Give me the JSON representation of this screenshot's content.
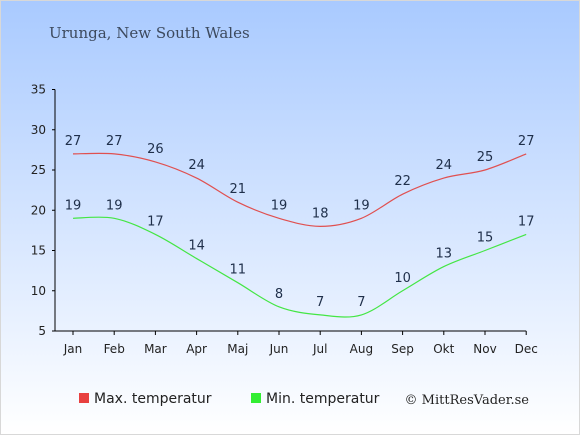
{
  "title": "Urunga, New South Wales",
  "credit": "© MittResVader.se",
  "colors": {
    "sky_top": "#a9caff",
    "sky_bottom": "#ffffff",
    "max_line": "#e05050",
    "min_line": "#44e644",
    "axis": "#000000",
    "label": "#1f2f4a"
  },
  "legend": [
    {
      "label": "Max. temperatur",
      "color": "#e84040"
    },
    {
      "label": "Min. temperatur",
      "color": "#33ee33"
    }
  ],
  "chart_data": {
    "type": "line",
    "title": "Urunga, New South Wales",
    "categories": [
      "Jan",
      "Feb",
      "Mar",
      "Apr",
      "Maj",
      "Jun",
      "Jul",
      "Aug",
      "Sep",
      "Okt",
      "Nov",
      "Dec"
    ],
    "series": [
      {
        "name": "Max. temperatur",
        "values": [
          27,
          27,
          26,
          24,
          21,
          19,
          18,
          19,
          22,
          24,
          25,
          27
        ],
        "color": "#e05050"
      },
      {
        "name": "Min. temperatur",
        "values": [
          19,
          19,
          17,
          14,
          11,
          8,
          7,
          7,
          10,
          13,
          15,
          17
        ],
        "color": "#44e644"
      }
    ],
    "yticks": [
      5,
      10,
      15,
      20,
      25,
      30,
      35
    ],
    "ylim": [
      5,
      35
    ],
    "grid": false,
    "legend_position": "bottom-left"
  }
}
